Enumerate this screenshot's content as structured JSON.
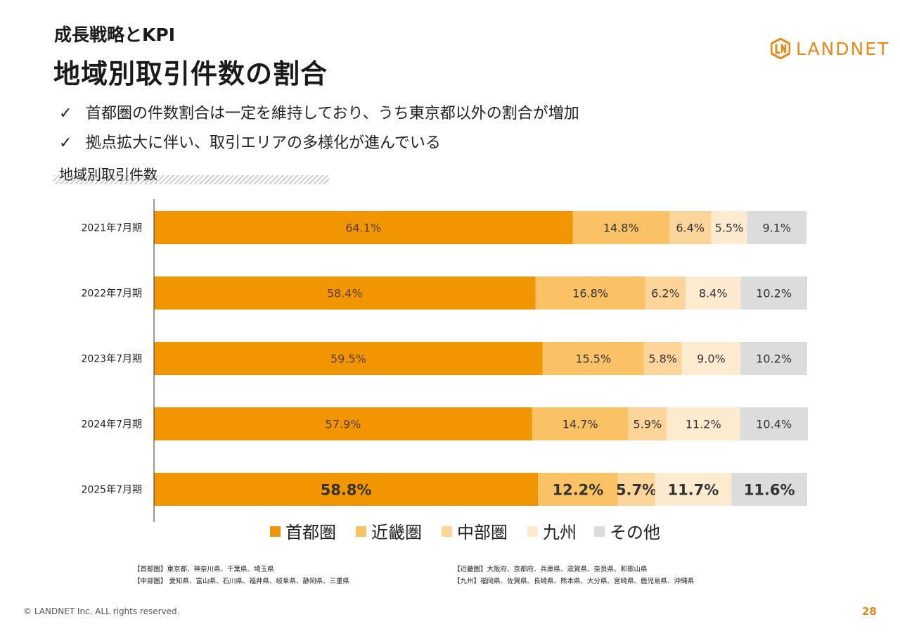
{
  "header": {
    "subtitle": "成長戦略とKPI",
    "title": "地域別取引件数の割合",
    "logo_text": "LANDNET"
  },
  "bullets": [
    {
      "icon": "check-icon",
      "text": "首都圏の件数割合は一定を維持しており、うち東京都以外の割合が増加"
    },
    {
      "icon": "check-icon",
      "text": "拠点拡大に伴い、取引エリアの多様化が進んでいる"
    }
  ],
  "check_glyph": "✓",
  "section_label": "地域別取引件数",
  "chart_data": {
    "type": "bar",
    "orientation": "horizontal",
    "stacked": "percent",
    "categories": [
      "2021年7月期",
      "2022年7月期",
      "2023年7月期",
      "2024年7月期",
      "2025年7月期"
    ],
    "series": [
      {
        "name": "首都圏",
        "color": "#f19600",
        "values": [
          64.1,
          58.4,
          59.5,
          57.9,
          58.8
        ]
      },
      {
        "name": "近畿圏",
        "color": "#fbc165",
        "values": [
          14.8,
          16.8,
          15.5,
          14.7,
          12.2
        ]
      },
      {
        "name": "中部圏",
        "color": "#fdd49a",
        "values": [
          6.4,
          6.2,
          5.8,
          5.9,
          5.7
        ]
      },
      {
        "name": "九州",
        "color": "#fdebd0",
        "values": [
          5.5,
          8.4,
          9.0,
          11.2,
          11.7
        ]
      },
      {
        "name": "その他",
        "color": "#dcdcdc",
        "values": [
          9.1,
          10.2,
          10.2,
          10.4,
          11.6
        ]
      }
    ],
    "value_suffix": "%",
    "highlight_category": "2025年7月期",
    "legend_position": "bottom",
    "xlim": [
      0,
      100
    ]
  },
  "notes": {
    "left": [
      "【首都圏】東京都、神奈川県、千葉県、埼玉県",
      "【中部圏】 愛知県、富山県、石川県、福井県、岐阜県、静岡県、三重県"
    ],
    "right": [
      "【近畿圏】大阪府、京都府、兵庫県、滋賀県、奈良県、和歌山県",
      "【九州】福岡県、佐賀県、長崎県、熊本県、大分県、宮崎県、鹿児島県、沖縄県"
    ]
  },
  "footer": {
    "copyright": "© LANDNET Inc. ALL rights reserved.",
    "page_number": "28"
  }
}
